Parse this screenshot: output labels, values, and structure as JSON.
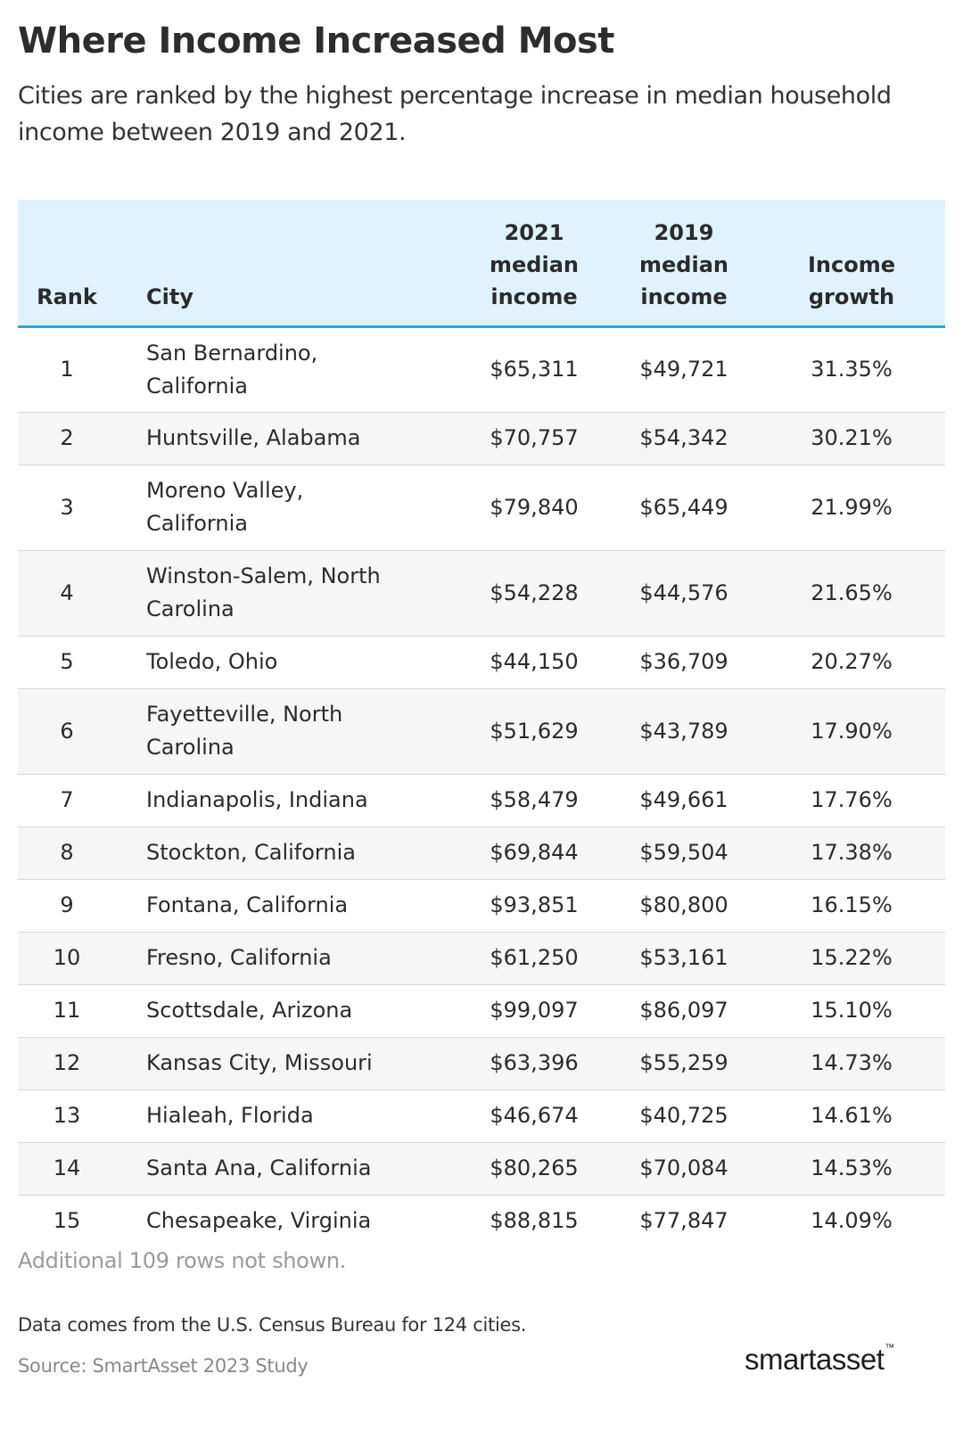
{
  "title": "Where Income Increased Most",
  "subtitle": "Cities are ranked by the highest percentage increase in median household income between 2019 and 2021.",
  "chart_data": {
    "type": "table",
    "columns": [
      {
        "key": "rank",
        "label_lines": [
          "Rank"
        ]
      },
      {
        "key": "city",
        "label_lines": [
          "City"
        ]
      },
      {
        "key": "income_2021",
        "label_lines": [
          "2021",
          "median",
          "income"
        ]
      },
      {
        "key": "income_2019",
        "label_lines": [
          "2019",
          "median",
          "income"
        ]
      },
      {
        "key": "growth",
        "label_lines": [
          "Income",
          "growth"
        ]
      }
    ],
    "rows": [
      {
        "rank": "1",
        "city_lines": [
          "San Bernardino,",
          "California"
        ],
        "income_2021": "$65,311",
        "income_2019": "$49,721",
        "growth": "31.35%"
      },
      {
        "rank": "2",
        "city_lines": [
          "Huntsville, Alabama"
        ],
        "income_2021": "$70,757",
        "income_2019": "$54,342",
        "growth": "30.21%"
      },
      {
        "rank": "3",
        "city_lines": [
          "Moreno Valley,",
          "California"
        ],
        "income_2021": "$79,840",
        "income_2019": "$65,449",
        "growth": "21.99%"
      },
      {
        "rank": "4",
        "city_lines": [
          "Winston-Salem, North",
          "Carolina"
        ],
        "income_2021": "$54,228",
        "income_2019": "$44,576",
        "growth": "21.65%"
      },
      {
        "rank": "5",
        "city_lines": [
          "Toledo, Ohio"
        ],
        "income_2021": "$44,150",
        "income_2019": "$36,709",
        "growth": "20.27%"
      },
      {
        "rank": "6",
        "city_lines": [
          "Fayetteville, North",
          "Carolina"
        ],
        "income_2021": "$51,629",
        "income_2019": "$43,789",
        "growth": "17.90%"
      },
      {
        "rank": "7",
        "city_lines": [
          "Indianapolis, Indiana"
        ],
        "income_2021": "$58,479",
        "income_2019": "$49,661",
        "growth": "17.76%"
      },
      {
        "rank": "8",
        "city_lines": [
          "Stockton, California"
        ],
        "income_2021": "$69,844",
        "income_2019": "$59,504",
        "growth": "17.38%"
      },
      {
        "rank": "9",
        "city_lines": [
          "Fontana, California"
        ],
        "income_2021": "$93,851",
        "income_2019": "$80,800",
        "growth": "16.15%"
      },
      {
        "rank": "10",
        "city_lines": [
          "Fresno, California"
        ],
        "income_2021": "$61,250",
        "income_2019": "$53,161",
        "growth": "15.22%"
      },
      {
        "rank": "11",
        "city_lines": [
          "Scottsdale, Arizona"
        ],
        "income_2021": "$99,097",
        "income_2019": "$86,097",
        "growth": "15.10%"
      },
      {
        "rank": "12",
        "city_lines": [
          "Kansas City, Missouri"
        ],
        "income_2021": "$63,396",
        "income_2019": "$55,259",
        "growth": "14.73%"
      },
      {
        "rank": "13",
        "city_lines": [
          "Hialeah, Florida"
        ],
        "income_2021": "$46,674",
        "income_2019": "$40,725",
        "growth": "14.61%"
      },
      {
        "rank": "14",
        "city_lines": [
          "Santa Ana, California"
        ],
        "income_2021": "$80,265",
        "income_2019": "$70,084",
        "growth": "14.53%"
      },
      {
        "rank": "15",
        "city_lines": [
          "Chesapeake, Virginia"
        ],
        "income_2021": "$88,815",
        "income_2019": "$77,847",
        "growth": "14.09%"
      }
    ],
    "header_background": "#dff2fd",
    "header_rule_color": "#3a9fd8",
    "stripe_color": "#f6f6f6"
  },
  "note": "Additional 109 rows not shown.",
  "data_note": "Data comes from the U.S. Census Bureau for 124 cities.",
  "source": "Source: SmartAsset 2023 Study",
  "logo": {
    "text": "smartasset",
    "mark": "™"
  }
}
